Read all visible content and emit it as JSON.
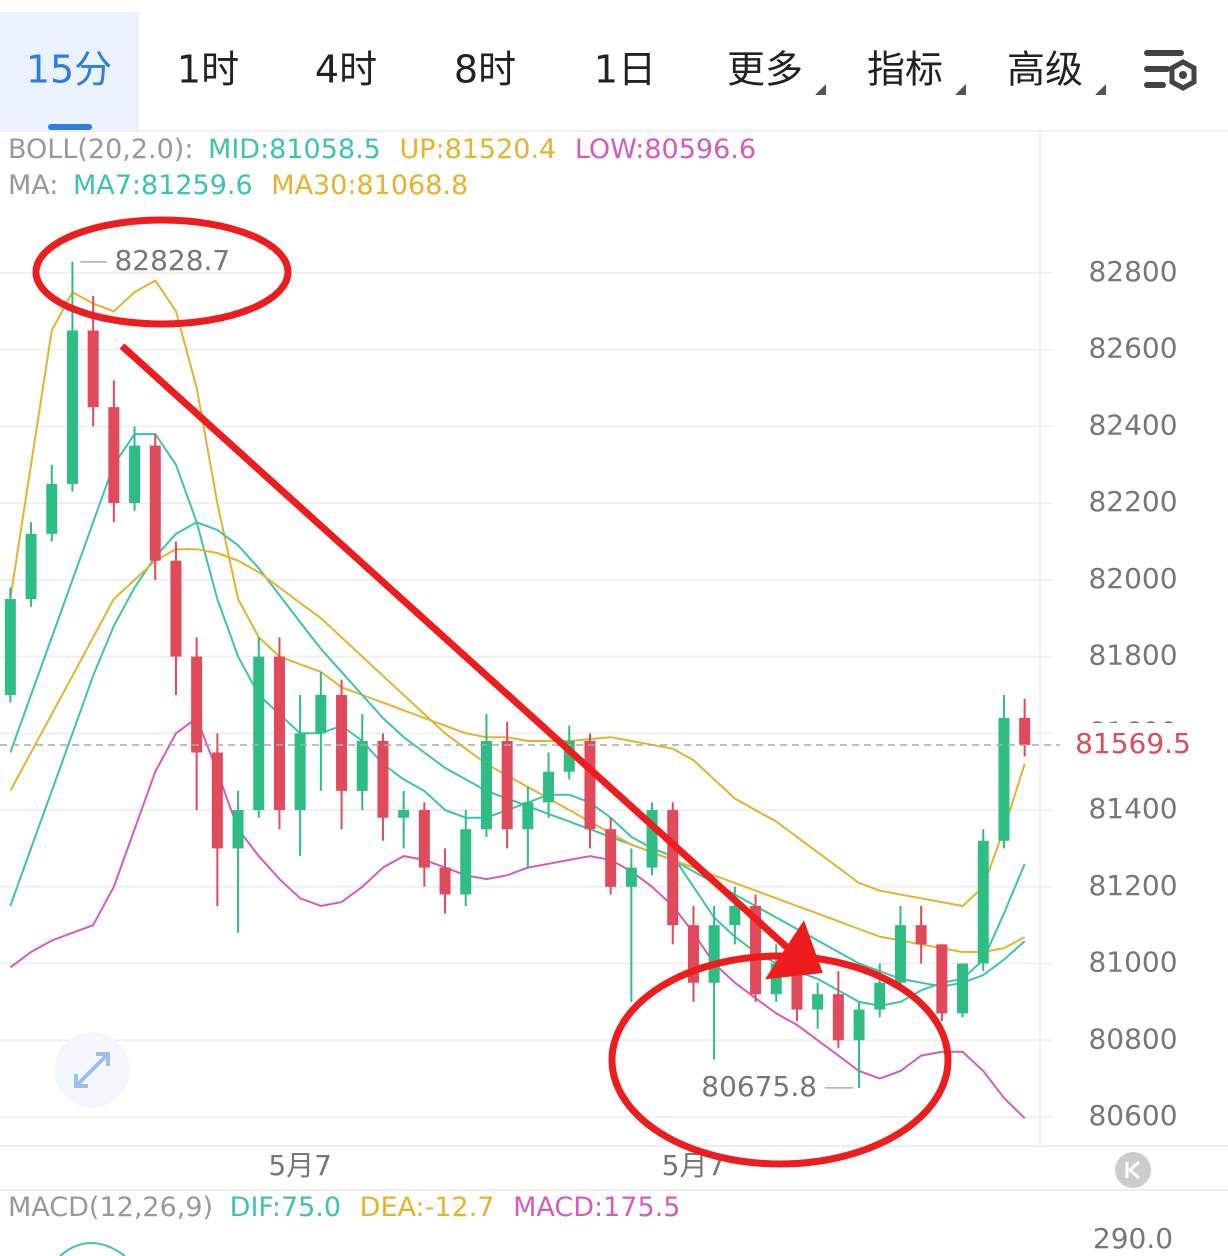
{
  "tabs": [
    "15分",
    "1时",
    "4时",
    "8时",
    "1日",
    "更多",
    "指标",
    "高级"
  ],
  "boll_header": {
    "label": "BOLL(20,2.0):",
    "mid": "MID:81058.5",
    "up": "UP:81520.4",
    "low": "LOW:80596.6"
  },
  "ma_header": {
    "label": "MA:",
    "ma7": "MA7:81259.6",
    "ma30": "MA30:81068.8"
  },
  "macd_header": {
    "label": "MACD(12,26,9)",
    "dif": "DIF:75.0",
    "dea": "DEA:-12.7",
    "macd": "MACD:175.5"
  },
  "macd_axis_label": "290.0",
  "chart_data": {
    "type": "candlestick",
    "up_color": "#2ebd85",
    "down_color": "#e04a5a",
    "ylim": [
      80527,
      82964
    ],
    "yticks": [
      80600,
      80800,
      81000,
      81200,
      81400,
      81600,
      81800,
      82000,
      82200,
      82400,
      82600,
      82800
    ],
    "grid": true,
    "xlim": [
      -0.5,
      49.5
    ],
    "xticks": [
      {
        "value": 14,
        "label": "5月7"
      },
      {
        "value": 33,
        "label": "5月7"
      }
    ],
    "open": [
      81700,
      81950,
      82120,
      82250,
      82650,
      82450,
      82200,
      82350,
      82050,
      81800,
      81550,
      81300,
      81400,
      81800,
      81400,
      81600,
      81700,
      81450,
      81580,
      81380,
      81400,
      81250,
      81180,
      81350,
      81580,
      81350,
      81420,
      81500,
      81580,
      81350,
      81200,
      81250,
      81400,
      81100,
      80950,
      81100,
      81150,
      80920,
      81000,
      80880,
      80920,
      80800,
      80880,
      80950,
      81100,
      81050,
      80870,
      81000,
      81320,
      81640
    ],
    "high": [
      81980,
      82150,
      82300,
      82828.7,
      82740,
      82520,
      82400,
      82380,
      82100,
      81850,
      81600,
      81450,
      81850,
      81850,
      81700,
      81760,
      81740,
      81650,
      81600,
      81450,
      81420,
      81300,
      81400,
      81650,
      81630,
      81460,
      81550,
      81620,
      81600,
      81380,
      81300,
      81420,
      81420,
      81150,
      81150,
      81200,
      81180,
      81050,
      81050,
      80950,
      80980,
      80900,
      81000,
      81150,
      81150,
      81050,
      81000,
      81350,
      81700,
      81690
    ],
    "low": [
      81680,
      81930,
      82100,
      82230,
      82400,
      82150,
      82180,
      82000,
      81700,
      81400,
      81150,
      81080,
      81380,
      81350,
      81280,
      81450,
      81350,
      81400,
      81320,
      81300,
      81200,
      81130,
      81150,
      81330,
      81300,
      81250,
      81380,
      81480,
      81300,
      81180,
      80900,
      81230,
      81050,
      80900,
      80750,
      81050,
      80900,
      80900,
      80850,
      80830,
      80780,
      80675.8,
      80860,
      80940,
      81000,
      80850,
      80860,
      80980,
      81300,
      81540
    ],
    "close": [
      81950,
      82120,
      82250,
      82650,
      82450,
      82200,
      82350,
      82050,
      81800,
      81550,
      81300,
      81400,
      81800,
      81400,
      81600,
      81700,
      81450,
      81580,
      81380,
      81400,
      81250,
      81180,
      81350,
      81580,
      81350,
      81420,
      81500,
      81580,
      81350,
      81200,
      81250,
      81400,
      81100,
      80950,
      81100,
      81150,
      80920,
      81000,
      80880,
      80920,
      80800,
      80880,
      80950,
      81100,
      81050,
      80870,
      81000,
      81320,
      81640,
      81569.5
    ],
    "series": [
      {
        "name": "UP",
        "color": "#e8b32c",
        "values": [
          81950,
          82300,
          82650,
          82750,
          82720,
          82700,
          82750,
          82780,
          82700,
          82500,
          82200,
          81950,
          81850,
          81800,
          81780,
          81760,
          81720,
          81700,
          81680,
          81660,
          81640,
          81620,
          81600,
          81590,
          81590,
          81580,
          81580,
          81580,
          81585,
          81590,
          81580,
          81570,
          81560,
          81530,
          81480,
          81430,
          81400,
          81370,
          81330,
          81290,
          81250,
          81210,
          81190,
          81180,
          81170,
          81160,
          81150,
          81200,
          81350,
          81520.4
        ]
      },
      {
        "name": "MID",
        "color": "#3cc4b0",
        "values": [
          81150,
          81300,
          81450,
          81600,
          81750,
          81880,
          81980,
          82060,
          82120,
          82150,
          82130,
          82090,
          82030,
          81960,
          81890,
          81820,
          81760,
          81700,
          81640,
          81590,
          81550,
          81510,
          81480,
          81450,
          81430,
          81410,
          81390,
          81370,
          81350,
          81330,
          81310,
          81290,
          81270,
          81240,
          81210,
          81180,
          81150,
          81120,
          81090,
          81060,
          81030,
          81000,
          80980,
          80960,
          80950,
          80940,
          80950,
          80970,
          81010,
          81058.5
        ]
      },
      {
        "name": "LOW",
        "color": "#d65bc0",
        "values": [
          80990,
          81030,
          81060,
          81080,
          81100,
          81200,
          81350,
          81500,
          81600,
          81640,
          81500,
          81350,
          81280,
          81220,
          81170,
          81150,
          81160,
          81200,
          81250,
          81280,
          81270,
          81250,
          81230,
          81220,
          81230,
          81250,
          81260,
          81270,
          81280,
          81270,
          81240,
          81200,
          81150,
          81080,
          81000,
          80950,
          80910,
          80870,
          80840,
          80800,
          80760,
          80720,
          80700,
          80720,
          80760,
          80770,
          80770,
          80720,
          80650,
          80596.6
        ]
      },
      {
        "name": "MA7",
        "color": "#3cc4b0",
        "values": [
          81550,
          81700,
          81850,
          82000,
          82150,
          82300,
          82380,
          82380,
          82300,
          82150,
          81950,
          81800,
          81700,
          81650,
          81600,
          81600,
          81620,
          81580,
          81520,
          81480,
          81450,
          81400,
          81380,
          81380,
          81400,
          81420,
          81440,
          81440,
          81420,
          81380,
          81330,
          81300,
          81280,
          81200,
          81120,
          81070,
          81030,
          81000,
          80980,
          80960,
          80930,
          80900,
          80890,
          80900,
          80930,
          80950,
          80960,
          81010,
          81130,
          81259.6
        ]
      },
      {
        "name": "MA30",
        "color": "#e8b32c",
        "values": [
          81450,
          81550,
          81650,
          81750,
          81850,
          81950,
          82000,
          82050,
          82080,
          82080,
          82070,
          82050,
          82020,
          81980,
          81940,
          81900,
          81850,
          81800,
          81750,
          81700,
          81650,
          81600,
          81560,
          81520,
          81490,
          81460,
          81430,
          81400,
          81370,
          81340,
          81310,
          81290,
          81270,
          81250,
          81230,
          81210,
          81190,
          81170,
          81150,
          81130,
          81110,
          81090,
          81070,
          81060,
          81050,
          81040,
          81030,
          81030,
          81040,
          81068.8
        ]
      }
    ]
  }
}
